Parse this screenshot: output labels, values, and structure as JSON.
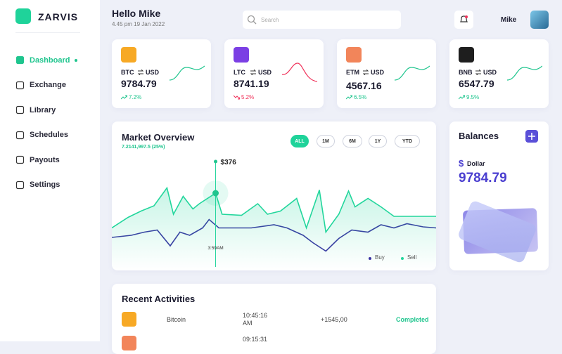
{
  "sidebar": {
    "brand": "ZARVIS",
    "nav": [
      "Dashboard",
      "Exchange",
      "Library",
      "Schedules",
      "Payouts",
      "Settings"
    ],
    "active": 0
  },
  "header": {
    "greeting": "Hello Mike",
    "datetime": "4.45 pm 19 Jan 2022",
    "search_placeholder": "Search",
    "user": "Mike"
  },
  "tickers": [
    {
      "symbol": "BTC",
      "quote": "USD",
      "price": "9784.79",
      "change": "7.2%",
      "trend": "up",
      "color": "#f7a925"
    },
    {
      "symbol": "LTC",
      "quote": "USD",
      "price": "8741.19",
      "change": "5.2%",
      "trend": "down",
      "color": "#7b3fe4"
    },
    {
      "symbol": "ETM",
      "quote": "USD",
      "price": "4567.16",
      "change": "6.5%",
      "trend": "up",
      "color": "#f2855a"
    },
    {
      "symbol": "BNB",
      "quote": "USD",
      "price": "6547.79",
      "change": "9.5%",
      "trend": "up",
      "color": "#1e1e1e"
    }
  ],
  "market": {
    "title": "Market Overview",
    "subtitle": "7.2141,997.5 (25%)",
    "ranges": [
      "ALL",
      "1M",
      "6M",
      "1Y",
      "YTD"
    ],
    "active_range": 0,
    "tooltip": {
      "x": 32,
      "value": "$376",
      "time": "3:59AM"
    },
    "chart": {
      "type": "line",
      "xlim": [
        0,
        100
      ],
      "ylim": [
        0,
        100
      ],
      "series": [
        {
          "name": "Buy",
          "color": "#3a33a3",
          "x": [
            0,
            6,
            10,
            14,
            18,
            21,
            24,
            28,
            30,
            33,
            37,
            43,
            50,
            54,
            59,
            62,
            66,
            70,
            74,
            79,
            83,
            87,
            91,
            96,
            100
          ],
          "values": [
            28,
            30,
            33,
            35,
            20,
            33,
            30,
            37,
            45,
            37,
            37,
            37,
            40,
            37,
            30,
            23,
            15,
            27,
            35,
            33,
            40,
            37,
            41,
            38,
            37
          ]
        },
        {
          "name": "Sell",
          "color": "#22d69c",
          "x": [
            0,
            5,
            9,
            13,
            17,
            19,
            22,
            25,
            27,
            32,
            34,
            40,
            45,
            48,
            52,
            57,
            60,
            64,
            66,
            70,
            73,
            75,
            79,
            83,
            87,
            100
          ],
          "values": [
            37,
            47,
            53,
            58,
            75,
            50,
            67,
            55,
            60,
            70,
            50,
            49,
            60,
            50,
            53,
            65,
            37,
            73,
            33,
            50,
            72,
            57,
            65,
            57,
            48,
            48
          ]
        }
      ]
    }
  },
  "balances": {
    "title": "Balances",
    "currency_symbol": "$",
    "currency": "Dollar",
    "amount": "9784.79"
  },
  "activities": {
    "title": "Recent Activities",
    "rows": [
      {
        "asset": "Bitcoin",
        "time": "10:45:16 AM",
        "amount": "+1545,00",
        "status": "Completed"
      },
      {
        "time": "09:15:31"
      }
    ]
  }
}
